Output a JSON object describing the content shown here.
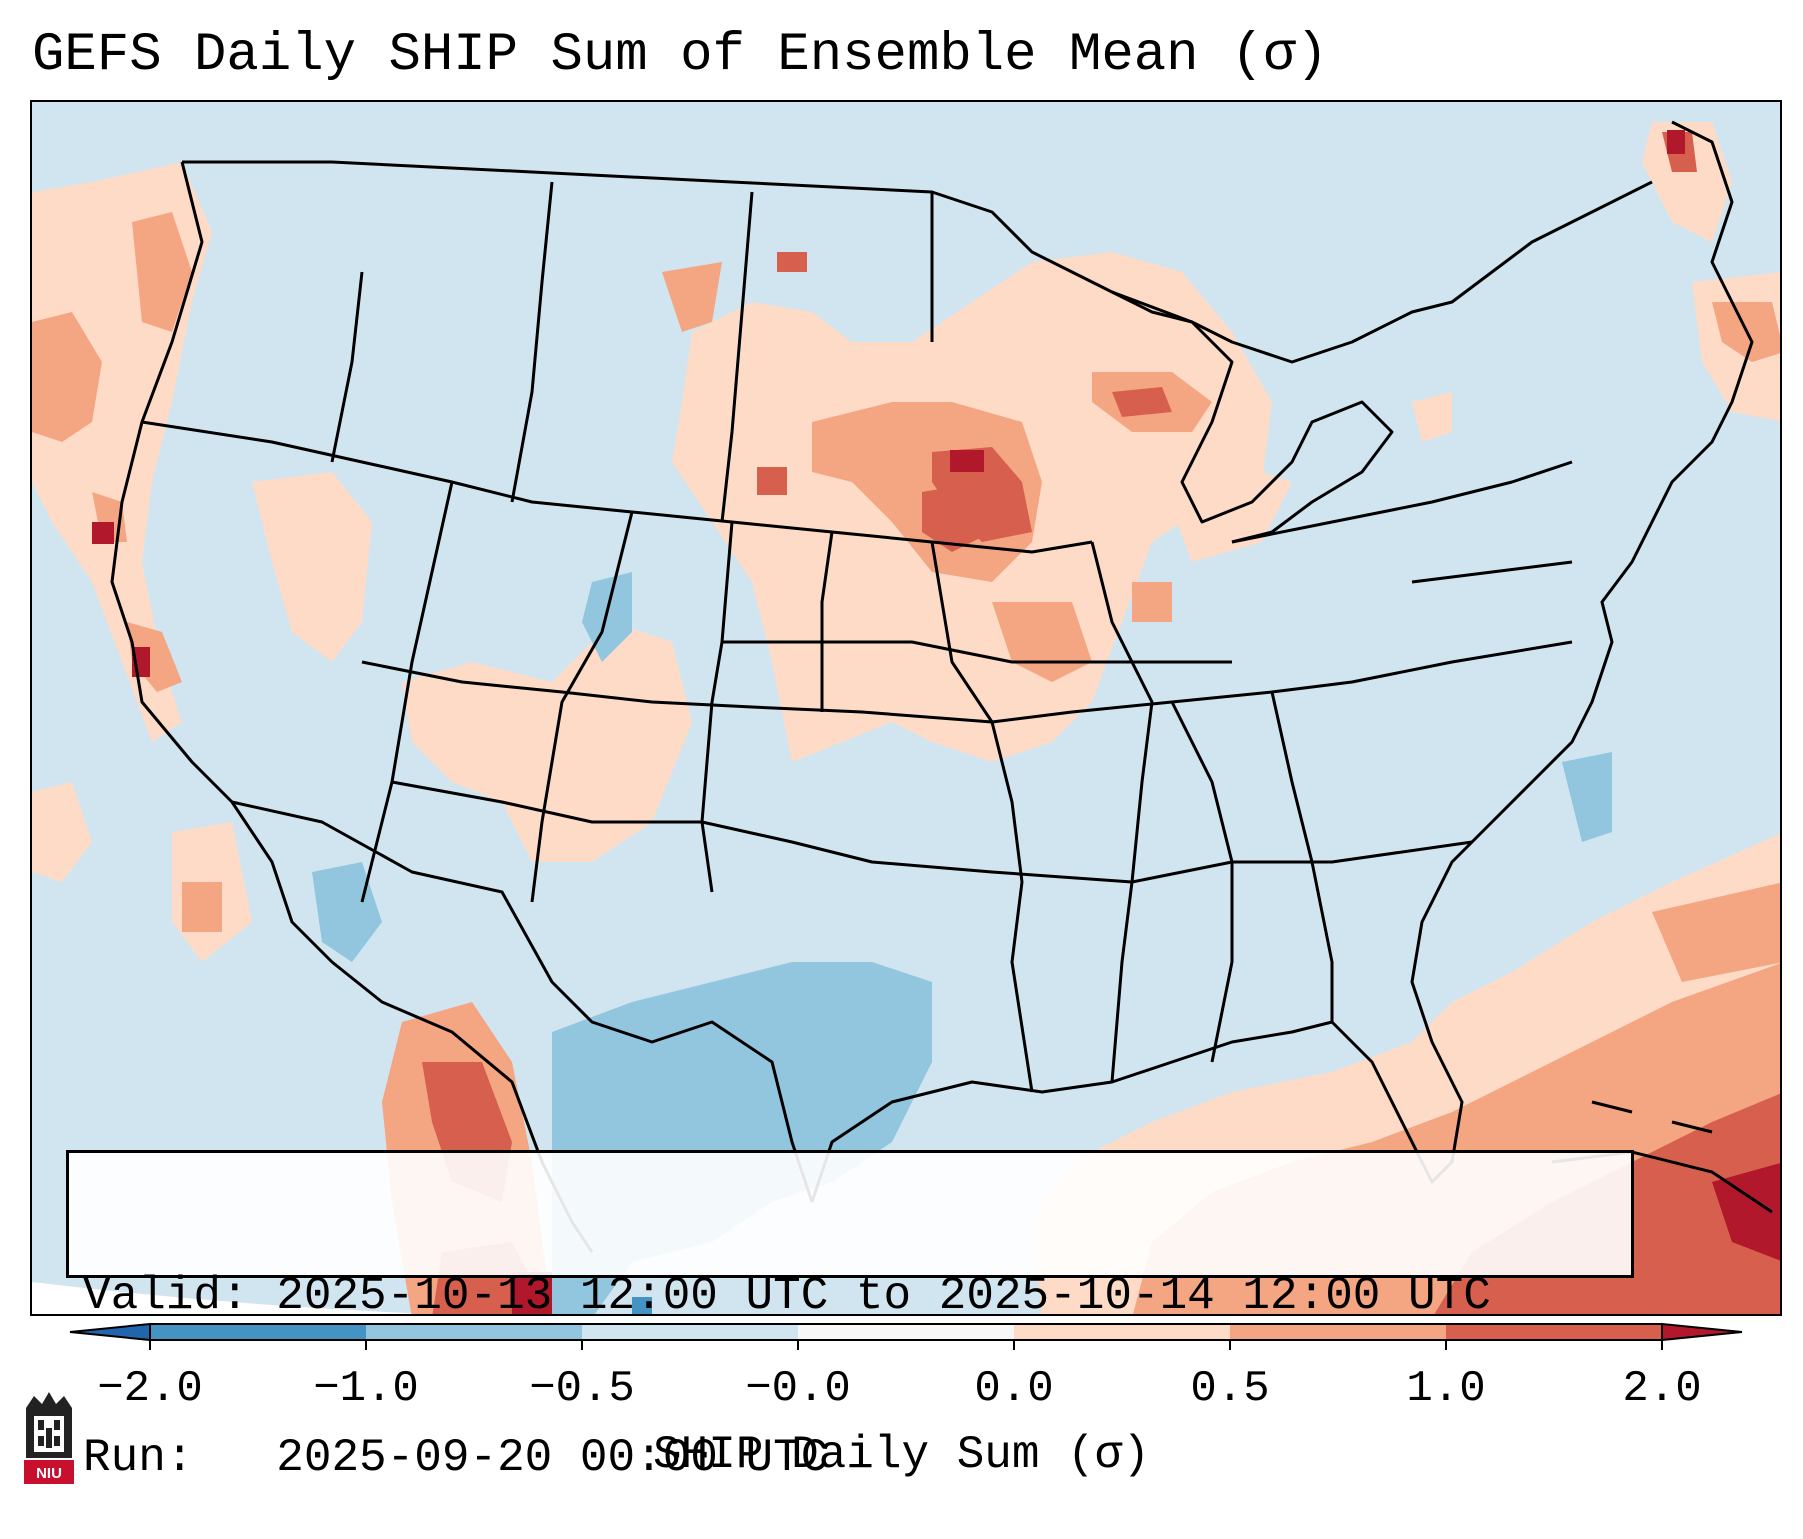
{
  "title": "GEFS Daily SHIP Sum of Ensemble Mean (σ)",
  "info": {
    "valid": "Valid: 2025-10-13 12:00 UTC to 2025-10-14 12:00 UTC",
    "run": "Run:   2025-09-20 00:00 UTC"
  },
  "colorbar": {
    "label": "SHIP Daily Sum (σ)",
    "ticks": [
      "−2.0",
      "−1.0",
      "−0.5",
      "−0.0",
      "0.0",
      "0.5",
      "1.0",
      "2.0"
    ],
    "bin_colors": [
      "#4393c3",
      "#92c5de",
      "#d1e5f0",
      "#fddbc7",
      "#f4a582",
      "#d6604d"
    ],
    "extend_low_color": "#2166ac",
    "extend_high_color": "#b2182b"
  },
  "colors": {
    "strong_negative": "#4393c3",
    "negative": "#92c5de",
    "near_zero_negative": "#d1e5f0",
    "near_zero_positive": "#fddbc7",
    "positive": "#f4a582",
    "strong_positive": "#d6604d",
    "extreme_positive": "#b2182b"
  },
  "logo": {
    "text": "NIU",
    "color": "#c8102e"
  }
}
